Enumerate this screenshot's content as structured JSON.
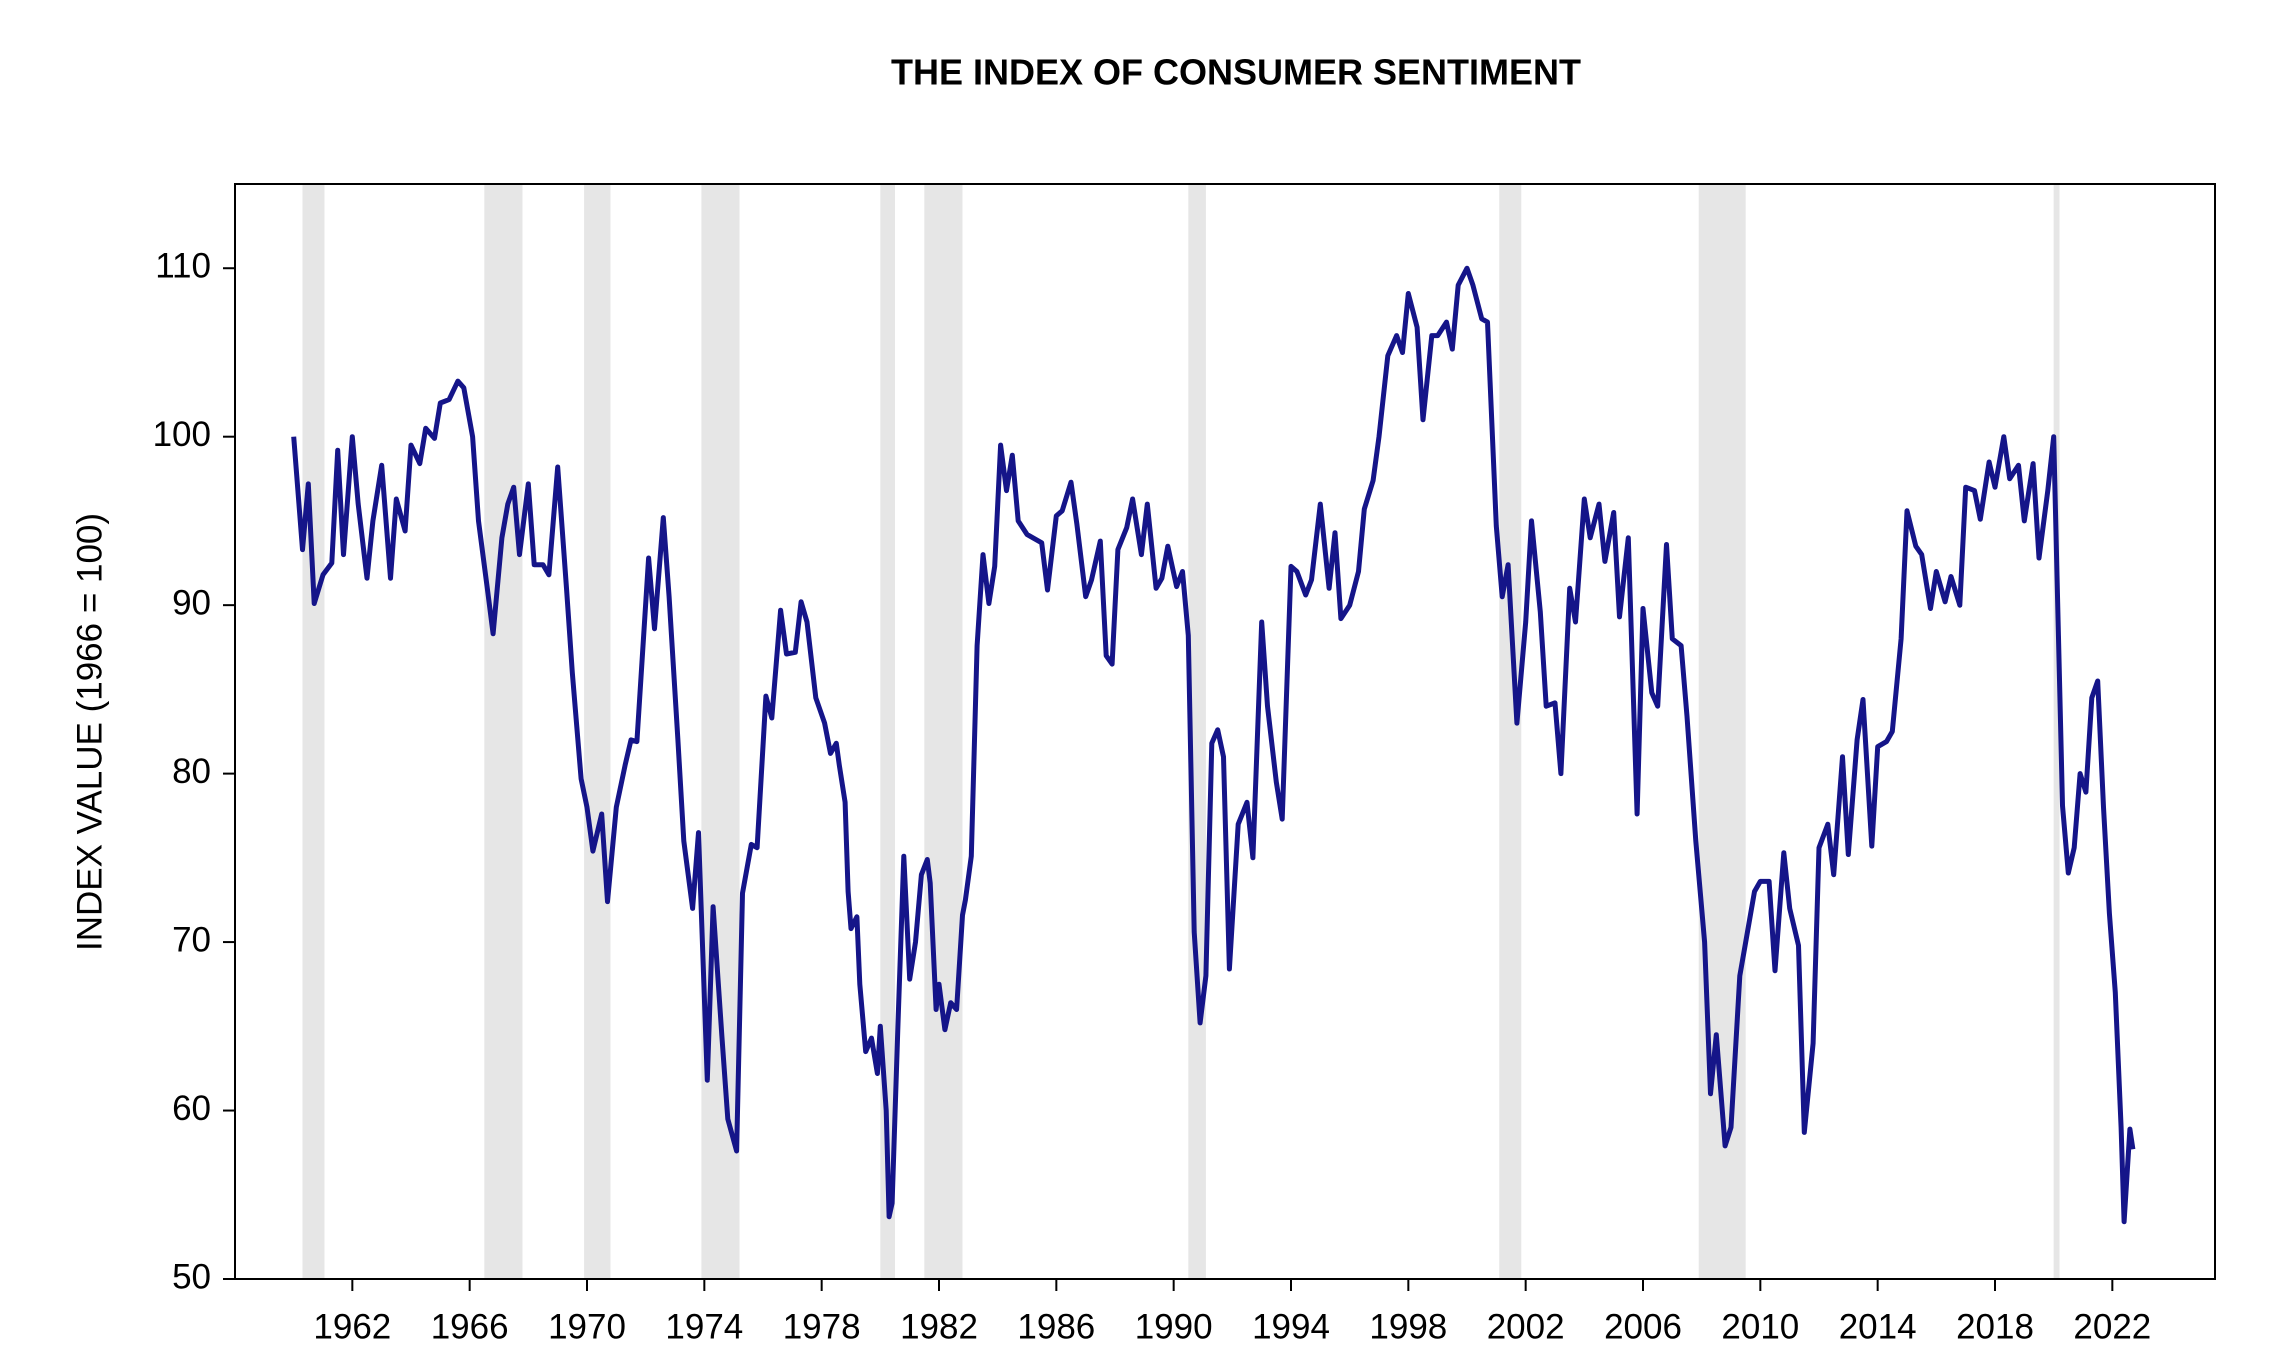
{
  "chart_data": {
    "type": "line",
    "title": "THE INDEX OF CONSUMER SENTIMENT",
    "y_label": "INDEX VALUE (1966 = 100)",
    "color": "#151589",
    "recession_color": "#e6e6e6",
    "xlim": [
      1958,
      2025.5
    ],
    "ylim": [
      50,
      115
    ],
    "xticks": [
      1962,
      1966,
      1970,
      1974,
      1978,
      1982,
      1986,
      1990,
      1994,
      1998,
      2002,
      2006,
      2010,
      2014,
      2018,
      2022
    ],
    "yticks": [
      50,
      60,
      70,
      80,
      90,
      100,
      110
    ],
    "grid": false,
    "recessions": [
      {
        "start": 1960.3,
        "end": 1961.05
      },
      {
        "start": 1966.5,
        "end": 1967.8
      },
      {
        "start": 1969.9,
        "end": 1970.8
      },
      {
        "start": 1973.9,
        "end": 1975.2
      },
      {
        "start": 1980.0,
        "end": 1980.5
      },
      {
        "start": 1981.5,
        "end": 1982.8
      },
      {
        "start": 1990.5,
        "end": 1991.1
      },
      {
        "start": 2001.1,
        "end": 2001.85
      },
      {
        "start": 2007.9,
        "end": 2009.5
      },
      {
        "start": 2020.0,
        "end": 2020.2
      }
    ],
    "x": [
      1960.0,
      1960.3,
      1960.5,
      1960.7,
      1961.0,
      1961.3,
      1961.5,
      1961.7,
      1962.0,
      1962.2,
      1962.5,
      1962.7,
      1963.0,
      1963.3,
      1963.5,
      1963.8,
      1964.0,
      1964.3,
      1964.5,
      1964.8,
      1965.0,
      1965.3,
      1965.6,
      1965.8,
      1966.1,
      1966.3,
      1966.6,
      1966.8,
      1967.1,
      1967.3,
      1967.5,
      1967.7,
      1968.0,
      1968.2,
      1968.5,
      1968.7,
      1969.0,
      1969.3,
      1969.5,
      1969.8,
      1970.0,
      1970.2,
      1970.5,
      1970.7,
      1971.0,
      1971.3,
      1971.5,
      1971.7,
      1972.1,
      1972.3,
      1972.6,
      1972.8,
      1973.1,
      1973.3,
      1973.6,
      1973.8,
      1974.1,
      1974.3,
      1974.6,
      1974.8,
      1975.1,
      1975.3,
      1975.6,
      1975.8,
      1976.1,
      1976.3,
      1976.6,
      1976.8,
      1977.1,
      1977.3,
      1977.5,
      1977.8,
      1978.1,
      1978.3,
      1978.5,
      1978.6,
      1978.8,
      1978.9,
      1979.0,
      1979.2,
      1979.3,
      1979.5,
      1979.7,
      1979.9,
      1980.0,
      1980.2,
      1980.3,
      1980.4,
      1980.6,
      1980.8,
      1981.0,
      1981.2,
      1981.4,
      1981.6,
      1981.7,
      1981.9,
      1982.0,
      1982.2,
      1982.4,
      1982.6,
      1982.8,
      1982.9,
      1983.1,
      1983.3,
      1983.5,
      1983.7,
      1983.9,
      1984.1,
      1984.3,
      1984.5,
      1984.7,
      1985.0,
      1985.2,
      1985.5,
      1985.7,
      1986.0,
      1986.2,
      1986.5,
      1986.7,
      1987.0,
      1987.2,
      1987.5,
      1987.7,
      1987.9,
      1988.1,
      1988.4,
      1988.6,
      1988.9,
      1989.1,
      1989.4,
      1989.6,
      1989.8,
      1990.1,
      1990.3,
      1990.5,
      1990.7,
      1990.9,
      1991.1,
      1991.3,
      1991.5,
      1991.7,
      1991.9,
      1992.2,
      1992.5,
      1992.7,
      1993.0,
      1993.2,
      1993.5,
      1993.7,
      1994.0,
      1994.2,
      1994.5,
      1994.7,
      1995.0,
      1995.3,
      1995.5,
      1995.7,
      1996.0,
      1996.3,
      1996.5,
      1996.8,
      1997.0,
      1997.3,
      1997.6,
      1997.8,
      1998.0,
      1998.3,
      1998.5,
      1998.8,
      1999.0,
      1999.3,
      1999.5,
      1999.7,
      2000.0,
      2000.2,
      2000.5,
      2000.7,
      2001.0,
      2001.2,
      2001.4,
      2001.7,
      2002.0,
      2002.2,
      2002.5,
      2002.7,
      2003.0,
      2003.2,
      2003.5,
      2003.7,
      2004.0,
      2004.2,
      2004.5,
      2004.7,
      2005.0,
      2005.2,
      2005.5,
      2005.8,
      2006.0,
      2006.3,
      2006.5,
      2006.8,
      2007.0,
      2007.3,
      2007.5,
      2007.8,
      2008.1,
      2008.3,
      2008.5,
      2008.8,
      2009.0,
      2009.3,
      2009.5,
      2009.8,
      2010.0,
      2010.3,
      2010.5,
      2010.8,
      2011.0,
      2011.3,
      2011.5,
      2011.8,
      2012.0,
      2012.3,
      2012.5,
      2012.8,
      2013.0,
      2013.3,
      2013.5,
      2013.8,
      2014.0,
      2014.3,
      2014.5,
      2014.8,
      2015.0,
      2015.3,
      2015.5,
      2015.8,
      2016.0,
      2016.3,
      2016.5,
      2016.8,
      2017.0,
      2017.3,
      2017.5,
      2017.8,
      2018.0,
      2018.3,
      2018.5,
      2018.8,
      2019.0,
      2019.3,
      2019.5,
      2019.8,
      2020.0,
      2020.3,
      2020.5,
      2020.7,
      2020.9,
      2021.1,
      2021.3,
      2021.5,
      2021.7,
      2021.9,
      2022.1,
      2022.3,
      2022.4,
      2022.6,
      2022.7
    ],
    "values": [
      100,
      93.3,
      97.2,
      90.1,
      91.8,
      92.5,
      99.2,
      93,
      100,
      96,
      91.6,
      95,
      98.3,
      91.6,
      96.3,
      94.4,
      99.5,
      98.4,
      100.5,
      99.9,
      102,
      102.2,
      103.3,
      102.9,
      100,
      95,
      91,
      88.3,
      94,
      96,
      97,
      93,
      97.2,
      92.4,
      92.4,
      91.8,
      98.2,
      91,
      86,
      79.7,
      78,
      75.4,
      77.6,
      72.4,
      78,
      80.5,
      82,
      81.9,
      92.8,
      88.6,
      95.2,
      90.5,
      82,
      76,
      72,
      76.5,
      61.8,
      72.1,
      64.4,
      59.5,
      57.6,
      72.9,
      75.8,
      75.6,
      84.6,
      83.3,
      89.7,
      87.1,
      87.2,
      90.2,
      89,
      84.5,
      83,
      81.2,
      81.8,
      80.5,
      78.3,
      73,
      70.8,
      71.5,
      67.5,
      63.5,
      64.3,
      62.2,
      65,
      60,
      53.7,
      54.5,
      65,
      75.1,
      67.8,
      70,
      74,
      74.9,
      73.5,
      66,
      67.5,
      64.8,
      66.4,
      66,
      71.6,
      72.5,
      75.1,
      87.6,
      93,
      90.1,
      92.3,
      99.5,
      96.8,
      98.9,
      95,
      94.2,
      94,
      93.7,
      90.9,
      95.3,
      95.6,
      97.3,
      94.8,
      90.5,
      91.5,
      93.8,
      87,
      86.5,
      93.3,
      94.6,
      96.3,
      93,
      96,
      91,
      91.6,
      93.5,
      91.1,
      92,
      88.2,
      70.6,
      65.2,
      68,
      81.8,
      82.6,
      81,
      68.4,
      77,
      78.3,
      75,
      89,
      84,
      79.5,
      77.3,
      92.3,
      92,
      90.6,
      91.5,
      96,
      91,
      94.3,
      89.2,
      90,
      92,
      95.7,
      97.4,
      100,
      104.8,
      106,
      105,
      108.5,
      106.5,
      101,
      106,
      106,
      106.8,
      105.2,
      109,
      110,
      109,
      107,
      106.8,
      94.7,
      90.5,
      92.4,
      83,
      89,
      95,
      89.6,
      84,
      84.2,
      80,
      91,
      89,
      96.3,
      94,
      96,
      92.6,
      95.5,
      89.3,
      94,
      77.6,
      89.8,
      84.8,
      84,
      93.6,
      88,
      87.6,
      83.4,
      76,
      70,
      61,
      64.5,
      57.9,
      59,
      68,
      70,
      73,
      73.6,
      73.6,
      68.3,
      75.3,
      72,
      69.8,
      58.7,
      64,
      75.6,
      77,
      74,
      81,
      75.2,
      82,
      84.4,
      75.7,
      81.6,
      81.9,
      82.5,
      88,
      95.6,
      93.5,
      93,
      89.8,
      92,
      90.2,
      91.7,
      90,
      97,
      96.8,
      95.1,
      98.5,
      97,
      100,
      97.5,
      98.3,
      95,
      98.4,
      92.8,
      96.8,
      100,
      78.1,
      74.1,
      75.6,
      80,
      78.9,
      84.5,
      85.5,
      78,
      71.7,
      67,
      59,
      53.4,
      58.9,
      57.7
    ]
  }
}
